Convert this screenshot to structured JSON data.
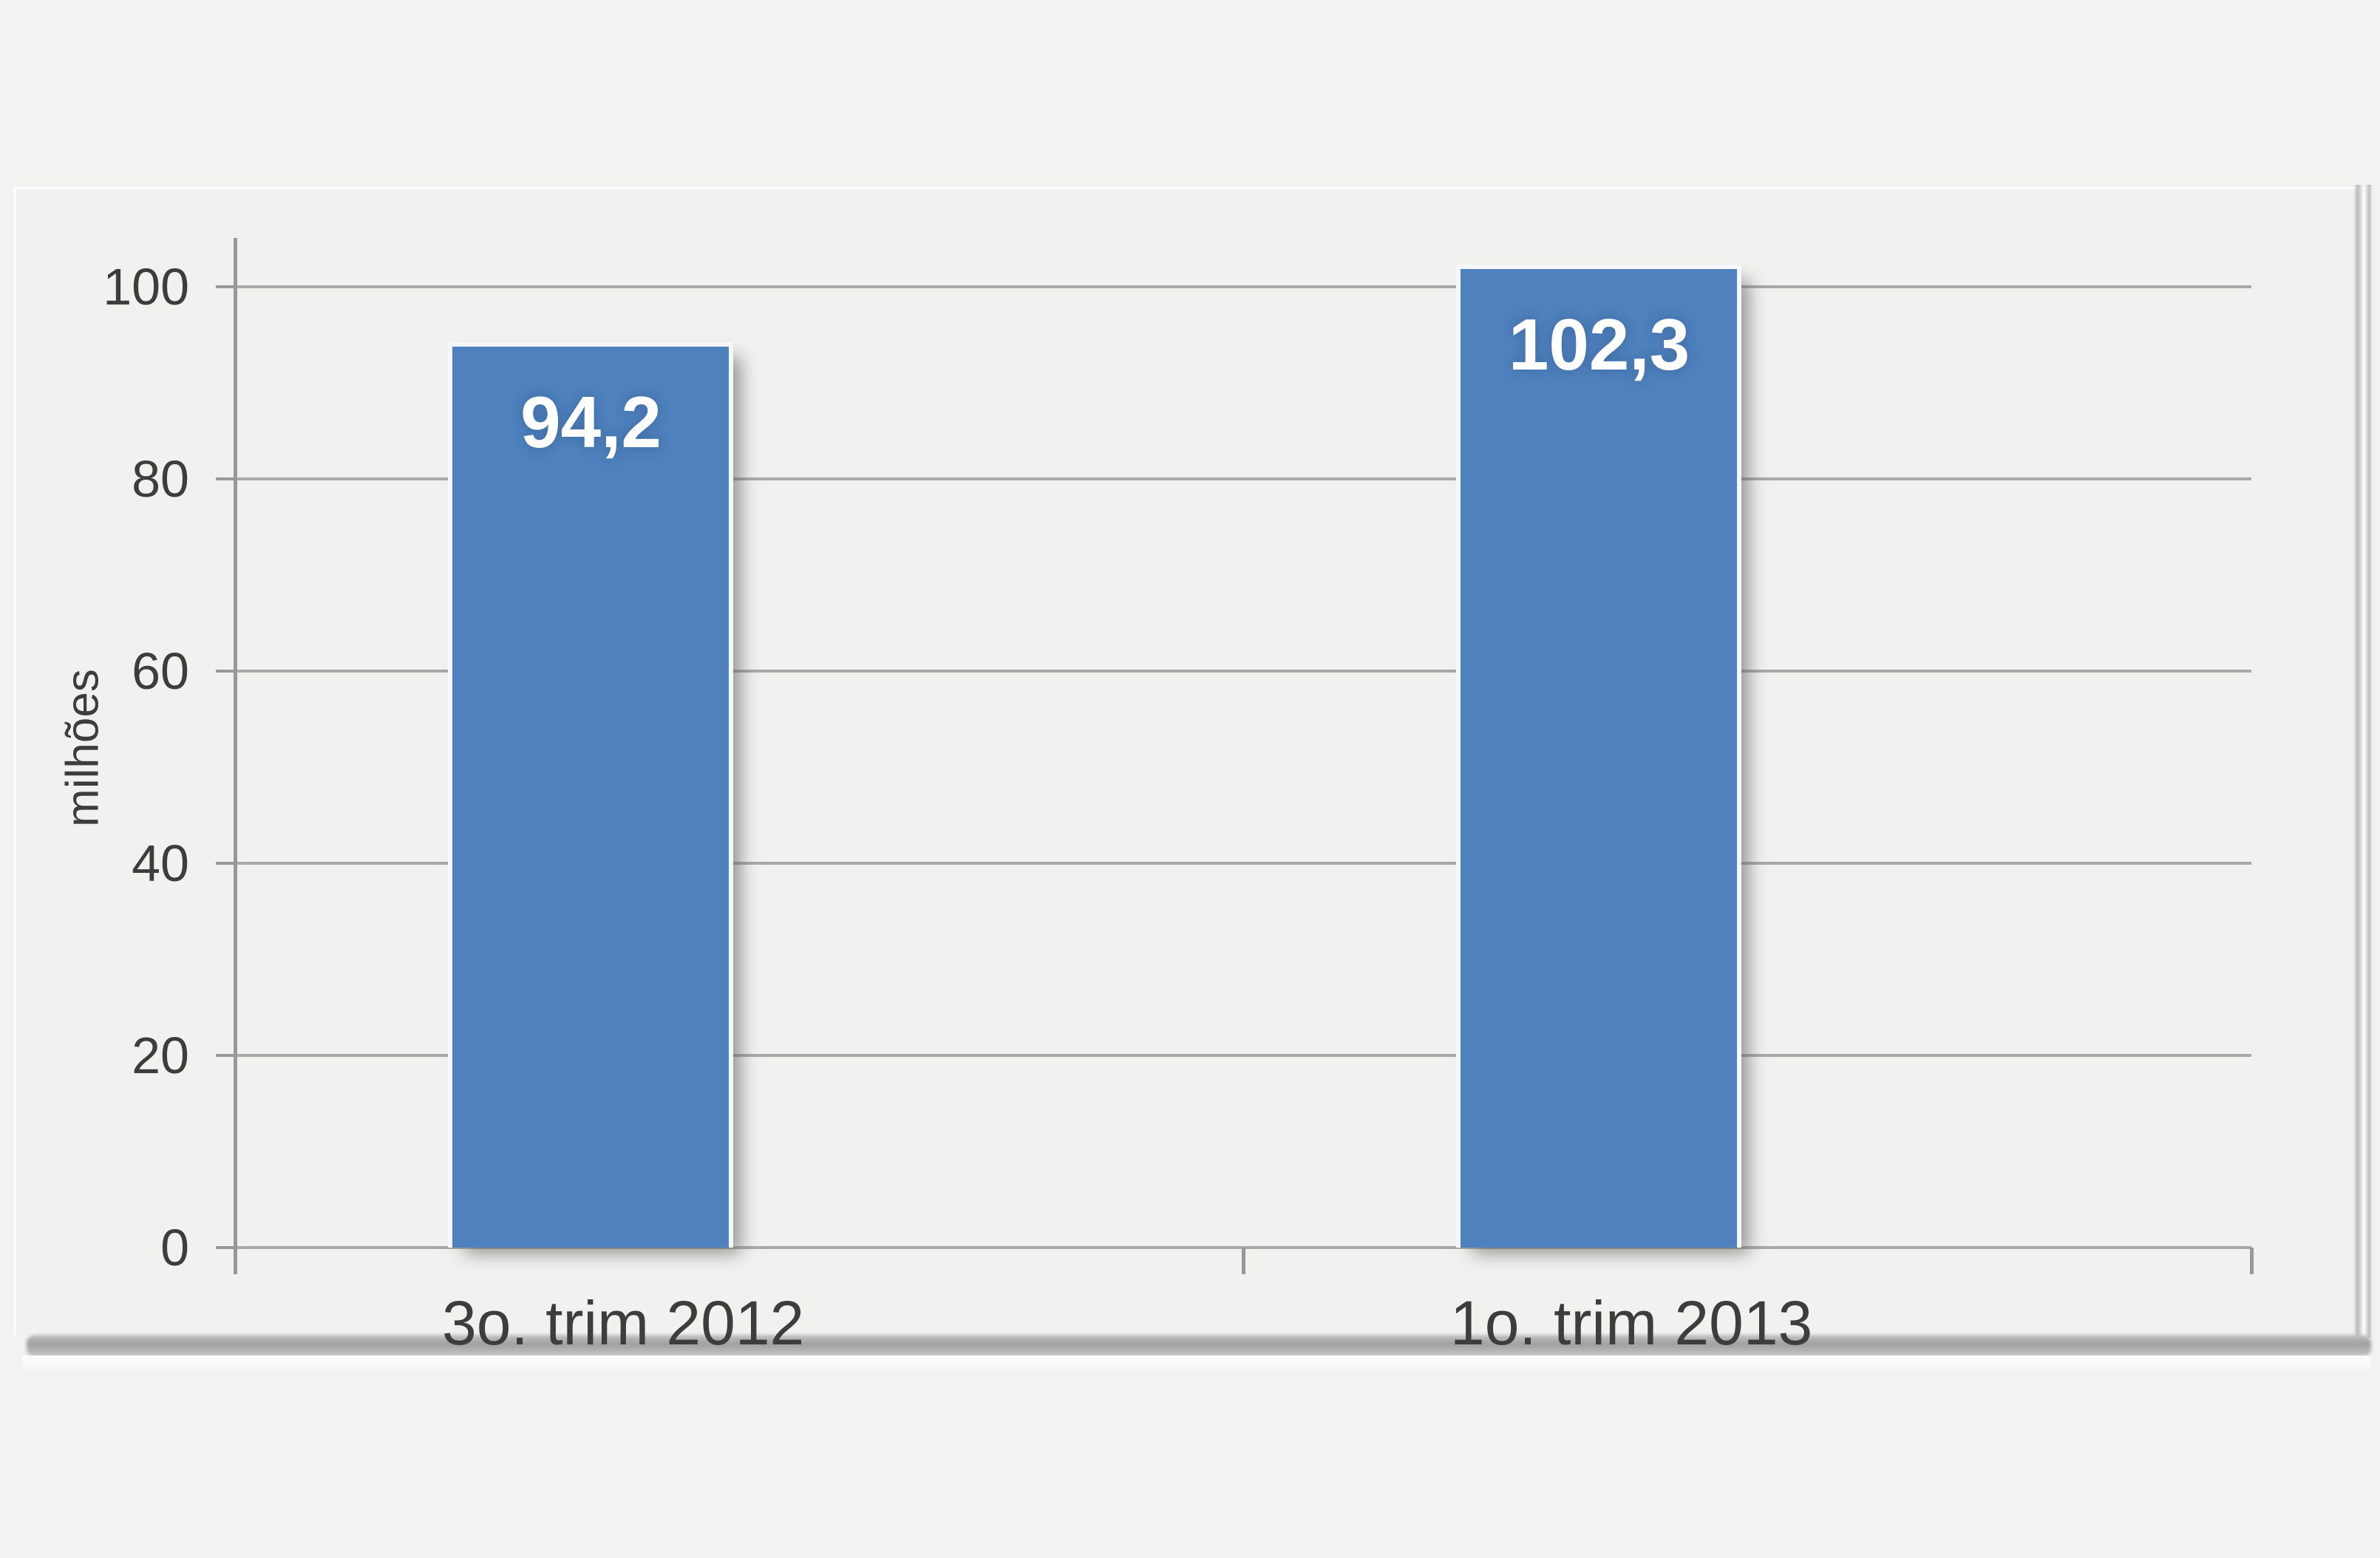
{
  "chart_data": {
    "type": "bar",
    "categories": [
      "3o. trim 2012",
      "1o. trim 2013"
    ],
    "values": [
      94.2,
      102.3
    ],
    "value_labels": [
      "94,2",
      "102,3"
    ],
    "title": "",
    "xlabel": "",
    "ylabel": "milhões",
    "yticks": [
      0,
      20,
      40,
      60,
      80,
      100
    ],
    "ylim": [
      0,
      108
    ],
    "legend": "none",
    "grid": true,
    "data_label_position": "inside-top",
    "colors": {
      "bar_fill": "#4e81bd",
      "bar_outline": "#f5f7fa",
      "data_label_text": "#ffffff",
      "axis_text": "#3d3d3d",
      "gridline": "#a9a9a9",
      "axis_line": "#989898",
      "panel_bg": "#f1f1f0",
      "page_bg": "#f2f2f1",
      "shadow": "#9f9f9f"
    }
  }
}
